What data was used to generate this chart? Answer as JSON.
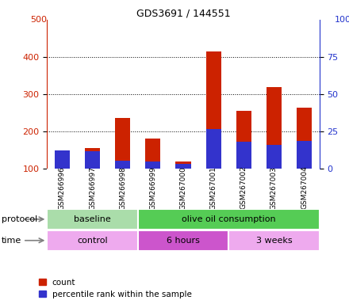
{
  "title": "GDS3691 / 144551",
  "samples": [
    "GSM266996",
    "GSM266997",
    "GSM266998",
    "GSM266999",
    "GSM267000",
    "GSM267001",
    "GSM267002",
    "GSM267003",
    "GSM267004"
  ],
  "count_values": [
    140,
    155,
    237,
    182,
    120,
    415,
    255,
    320,
    265
  ],
  "percentile_heights": [
    150,
    148,
    122,
    120,
    113,
    207,
    173,
    163,
    175
  ],
  "ylim_left": [
    100,
    500
  ],
  "ylim_right": [
    0,
    100
  ],
  "yticks_left": [
    100,
    200,
    300,
    400
  ],
  "yticks_right": [
    0,
    25,
    50,
    75
  ],
  "bar_color": "#cc2200",
  "percentile_color": "#3333cc",
  "protocol_labels": [
    "baseline",
    "olive oil consumption"
  ],
  "protocol_colors": [
    "#aaddaa",
    "#55cc55"
  ],
  "time_labels": [
    "control",
    "6 hours",
    "3 weeks"
  ],
  "time_colors": [
    "#eeaaee",
    "#cc55cc",
    "#eeaaee"
  ],
  "legend_count_label": "count",
  "legend_percentile_label": "percentile rank within the sample",
  "left_axis_color": "#cc2200",
  "right_axis_color": "#2233cc"
}
